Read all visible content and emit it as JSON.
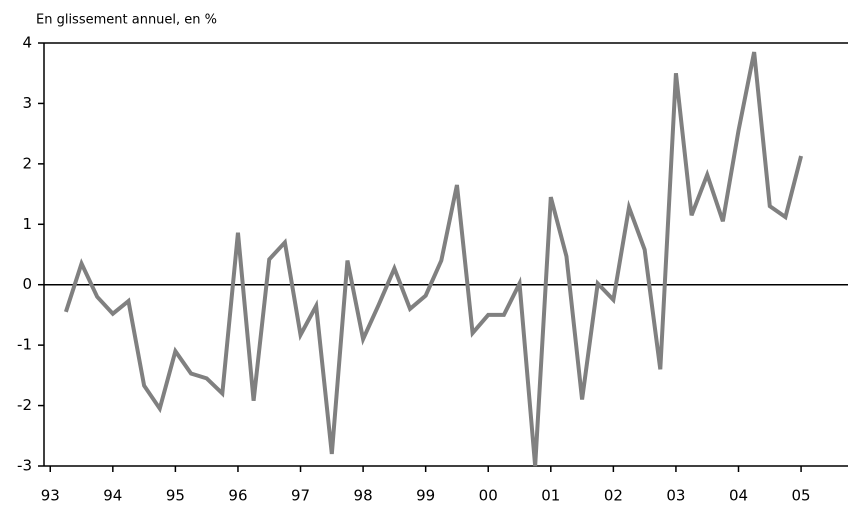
{
  "chart_data": {
    "type": "line",
    "y_axis_label": "En glissement annuel, en %",
    "x": [
      1993.25,
      1993.5,
      1993.75,
      1994,
      1994.25,
      1994.5,
      1994.75,
      1995,
      1995.25,
      1995.5,
      1995.75,
      1996,
      1996.25,
      1996.5,
      1996.75,
      1997,
      1997.25,
      1997.5,
      1997.75,
      1998,
      1998.25,
      1998.5,
      1998.75,
      1999,
      1999.25,
      1999.5,
      1999.75,
      2000,
      2000.25,
      2000.5,
      2000.75,
      2001,
      2001.25,
      2001.5,
      2001.75,
      2002,
      2002.25,
      2002.5,
      2002.75,
      2003,
      2003.25,
      2003.5,
      2003.75,
      2004,
      2004.25,
      2004.5,
      2004.75,
      2005
    ],
    "series": [
      {
        "name": null,
        "color": "#808080",
        "values": [
          -0.45,
          0.35,
          -0.2,
          -0.48,
          -0.27,
          -1.67,
          -2.05,
          -1.1,
          -1.47,
          -1.55,
          -1.8,
          0.86,
          -1.92,
          0.42,
          0.7,
          -0.83,
          -0.35,
          -2.8,
          0.4,
          -0.9,
          -0.33,
          0.27,
          -0.4,
          -0.18,
          0.4,
          1.65,
          -0.8,
          -0.5,
          -0.5,
          0.02,
          -3.0,
          1.45,
          0.47,
          -1.9,
          0.02,
          -0.25,
          1.28,
          0.58,
          -1.4,
          3.5,
          1.15,
          1.82,
          1.05,
          2.55,
          3.85,
          1.3,
          1.12,
          2.13
        ]
      }
    ],
    "xlim": [
      1992.9,
      2005.75
    ],
    "xticks": [
      {
        "value": 1993,
        "label": "93"
      },
      {
        "value": 1994,
        "label": "94"
      },
      {
        "value": 1995,
        "label": "95"
      },
      {
        "value": 1996,
        "label": "96"
      },
      {
        "value": 1997,
        "label": "97"
      },
      {
        "value": 1998,
        "label": "98"
      },
      {
        "value": 1999,
        "label": "99"
      },
      {
        "value": 2000,
        "label": "00"
      },
      {
        "value": 2001,
        "label": "01"
      },
      {
        "value": 2002,
        "label": "02"
      },
      {
        "value": 2003,
        "label": "03"
      },
      {
        "value": 2004,
        "label": "04"
      },
      {
        "value": 2005,
        "label": "05"
      }
    ],
    "ylim": [
      -3,
      4
    ],
    "yticks": [
      -3,
      -2,
      -1,
      0,
      1,
      2,
      3,
      4
    ],
    "grid": false
  }
}
